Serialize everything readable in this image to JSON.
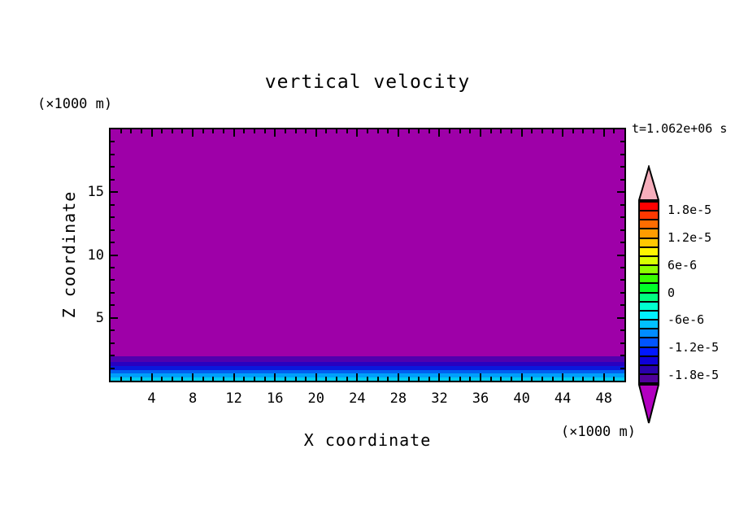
{
  "title": "vertical velocity",
  "timestamp": "t=1.062e+06 s",
  "axes": {
    "x": {
      "label": "X coordinate",
      "unit": "(×1000 m)",
      "min": 0,
      "max": 50,
      "major_tick_values": [
        4,
        8,
        12,
        16,
        20,
        24,
        28,
        32,
        36,
        40,
        44,
        48
      ],
      "minor_tick_step": 1
    },
    "z": {
      "label": "Z coordinate",
      "unit": "(×1000 m)",
      "min": 0,
      "max": 20,
      "major_tick_values": [
        5,
        10,
        15
      ],
      "minor_tick_step": 1
    }
  },
  "colorbar": {
    "tick_labels": [
      "1.8e-5",
      "1.2e-5",
      "6e-6",
      "0",
      "-6e-6",
      "-1.2e-5",
      "-1.8e-5"
    ],
    "over_color": "#F6AEBC",
    "under_color": "#B200C0",
    "segment_colors": [
      "#FF0000",
      "#FF3800",
      "#FF6C00",
      "#FF9C00",
      "#FFC800",
      "#FFF400",
      "#D8FF00",
      "#8CFF00",
      "#38FF00",
      "#00FF28",
      "#00FF80",
      "#00FFD0",
      "#00F0FF",
      "#00C0FF",
      "#008CFF",
      "#0054FF",
      "#0018FF",
      "#0E00D8",
      "#2A00AC",
      "#50009B"
    ]
  },
  "field": {
    "background_color": "#9E00A8",
    "surface_bands": [
      {
        "color": "#5000AE",
        "px": 7
      },
      {
        "color": "#2800C0",
        "px": 5
      },
      {
        "color": "#0A18DC",
        "px": 5
      },
      {
        "color": "#0060F0",
        "px": 4
      },
      {
        "color": "#00A0FB",
        "px": 5
      },
      {
        "color": "#00CCF0",
        "px": 4
      }
    ]
  },
  "chart_data": {
    "type": "heatmap",
    "title": "vertical velocity",
    "xlabel": "X coordinate (×1000 m)",
    "ylabel": "Z coordinate (×1000 m)",
    "xlim": [
      0,
      50
    ],
    "ylim": [
      0,
      20
    ],
    "time_annotation": "t=1.062e+06 s",
    "colorbar": {
      "min": -2e-05,
      "max": 2e-05,
      "contour_interval": 2e-06,
      "tick_values": [
        1.8e-05,
        1.2e-05,
        6e-06,
        0,
        -6e-06,
        -1.2e-05,
        -1.8e-05
      ],
      "over_color": "#F6AEBC",
      "under_color": "#B200C0"
    },
    "field_structure": "horizontally uniform; uniform under-range magenta aloft with thin graded blue-cyan layers near the surface",
    "layers_top_to_bottom": [
      {
        "z_range": [
          1.9,
          20.0
        ],
        "approx_value": "< -2e-5",
        "color": "#9E00A8"
      },
      {
        "z_range": [
          1.45,
          1.9
        ],
        "color": "#5000AE"
      },
      {
        "z_range": [
          1.15,
          1.45
        ],
        "color": "#2800C0"
      },
      {
        "z_range": [
          0.8,
          1.15
        ],
        "color": "#0A18DC"
      },
      {
        "z_range": [
          0.55,
          0.8
        ],
        "color": "#0060F0"
      },
      {
        "z_range": [
          0.25,
          0.55
        ],
        "color": "#00A0FB"
      },
      {
        "z_range": [
          0.0,
          0.25
        ],
        "color": "#00CCF0"
      }
    ]
  }
}
